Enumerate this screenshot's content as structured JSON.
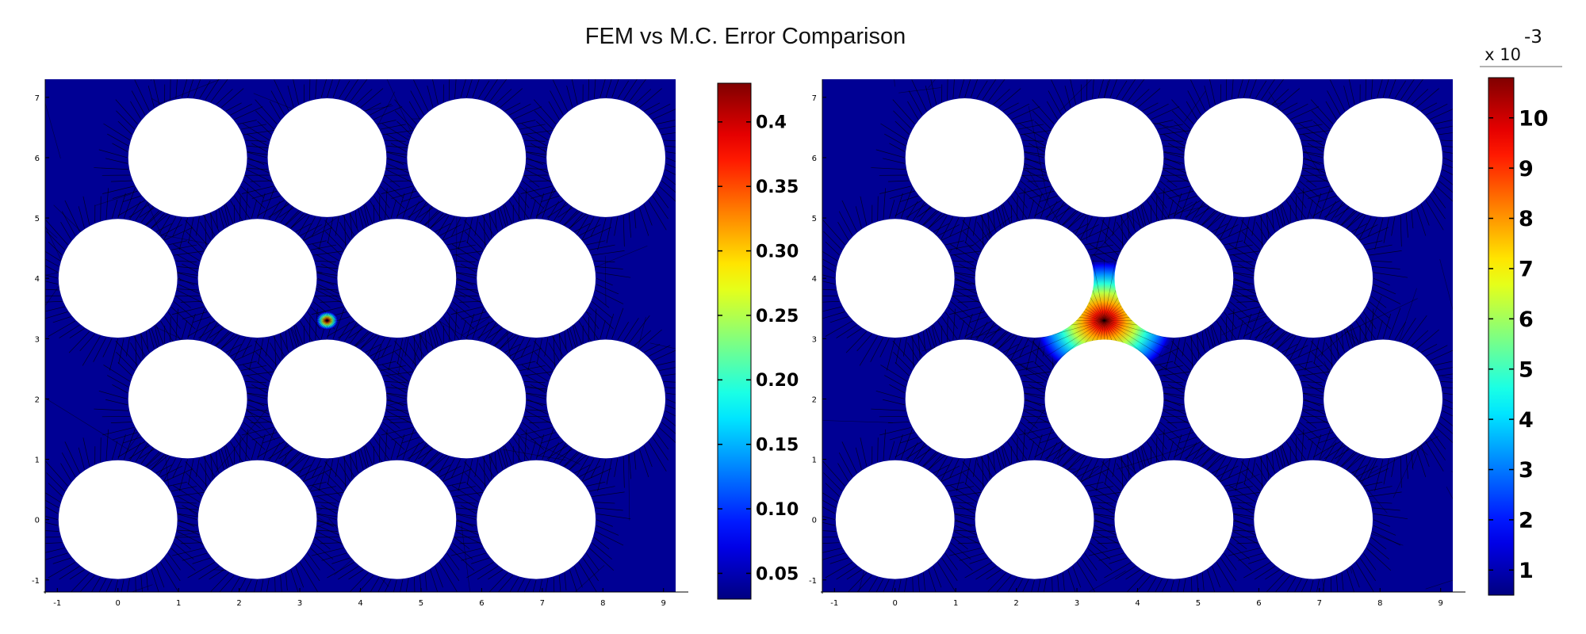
{
  "title": "FEM vs M.C. Error Comparison",
  "chart_data": [
    {
      "type": "heatmap",
      "panel": "left",
      "colormap": "jet",
      "xlim": [
        -1.2,
        9.2
      ],
      "ylim": [
        -1.2,
        7.3
      ],
      "xticks": [
        "-1",
        "0",
        "1",
        "2",
        "3",
        "4",
        "5",
        "6",
        "7",
        "8",
        "9"
      ],
      "yticks": [
        "-1",
        "0",
        "1",
        "2",
        "3",
        "4",
        "5",
        "6",
        "7"
      ],
      "holes": [
        {
          "x": 1.15,
          "y": 6
        },
        {
          "x": 3.45,
          "y": 6
        },
        {
          "x": 5.75,
          "y": 6
        },
        {
          "x": 8.05,
          "y": 6
        },
        {
          "x": 0,
          "y": 4
        },
        {
          "x": 2.3,
          "y": 4
        },
        {
          "x": 4.6,
          "y": 4
        },
        {
          "x": 6.9,
          "y": 4
        },
        {
          "x": 1.15,
          "y": 2
        },
        {
          "x": 3.45,
          "y": 2
        },
        {
          "x": 5.75,
          "y": 2
        },
        {
          "x": 8.05,
          "y": 2
        },
        {
          "x": 0,
          "y": 0
        },
        {
          "x": 2.3,
          "y": 0
        },
        {
          "x": 4.6,
          "y": 0
        },
        {
          "x": 6.9,
          "y": 0
        }
      ],
      "hole_radius": 0.98,
      "hotspot": {
        "x": 3.45,
        "y": 3.3,
        "radius": 0.18,
        "peak": 0.43
      },
      "colorbar": {
        "range": [
          0.03,
          0.43
        ],
        "ticks": [
          "0.4",
          "0.35",
          "0.30",
          "0.25",
          "0.20",
          "0.15",
          "0.10",
          "0.05"
        ],
        "tick_values": [
          0.4,
          0.35,
          0.3,
          0.25,
          0.2,
          0.15,
          0.1,
          0.05
        ]
      }
    },
    {
      "type": "heatmap",
      "panel": "right",
      "colormap": "jet",
      "xlim": [
        -1.2,
        9.2
      ],
      "ylim": [
        -1.2,
        7.3
      ],
      "xticks": [
        "-1",
        "0",
        "1",
        "2",
        "3",
        "4",
        "5",
        "6",
        "7",
        "8",
        "9"
      ],
      "yticks": [
        "-1",
        "0",
        "1",
        "2",
        "3",
        "4",
        "5",
        "6",
        "7"
      ],
      "holes": [
        {
          "x": 1.15,
          "y": 6
        },
        {
          "x": 3.45,
          "y": 6
        },
        {
          "x": 5.75,
          "y": 6
        },
        {
          "x": 8.05,
          "y": 6
        },
        {
          "x": 0,
          "y": 4
        },
        {
          "x": 2.3,
          "y": 4
        },
        {
          "x": 4.6,
          "y": 4
        },
        {
          "x": 6.9,
          "y": 4
        },
        {
          "x": 1.15,
          "y": 2
        },
        {
          "x": 3.45,
          "y": 2
        },
        {
          "x": 5.75,
          "y": 2
        },
        {
          "x": 8.05,
          "y": 2
        },
        {
          "x": 0,
          "y": 0
        },
        {
          "x": 2.3,
          "y": 0
        },
        {
          "x": 4.6,
          "y": 0
        },
        {
          "x": 6.9,
          "y": 0
        }
      ],
      "hole_radius": 0.98,
      "hotspot": {
        "x": 3.45,
        "y": 3.3,
        "radius": 1.2,
        "peak": 10.8
      },
      "colorbar": {
        "range": [
          0.5,
          10.8
        ],
        "ticks": [
          "10",
          "9",
          "8",
          "7",
          "6",
          "5",
          "4",
          "3",
          "2",
          "1"
        ],
        "tick_values": [
          10,
          9,
          8,
          7,
          6,
          5,
          4,
          3,
          2,
          1
        ],
        "multiplier_base": "x 10",
        "multiplier_exponent": "-3"
      }
    }
  ]
}
